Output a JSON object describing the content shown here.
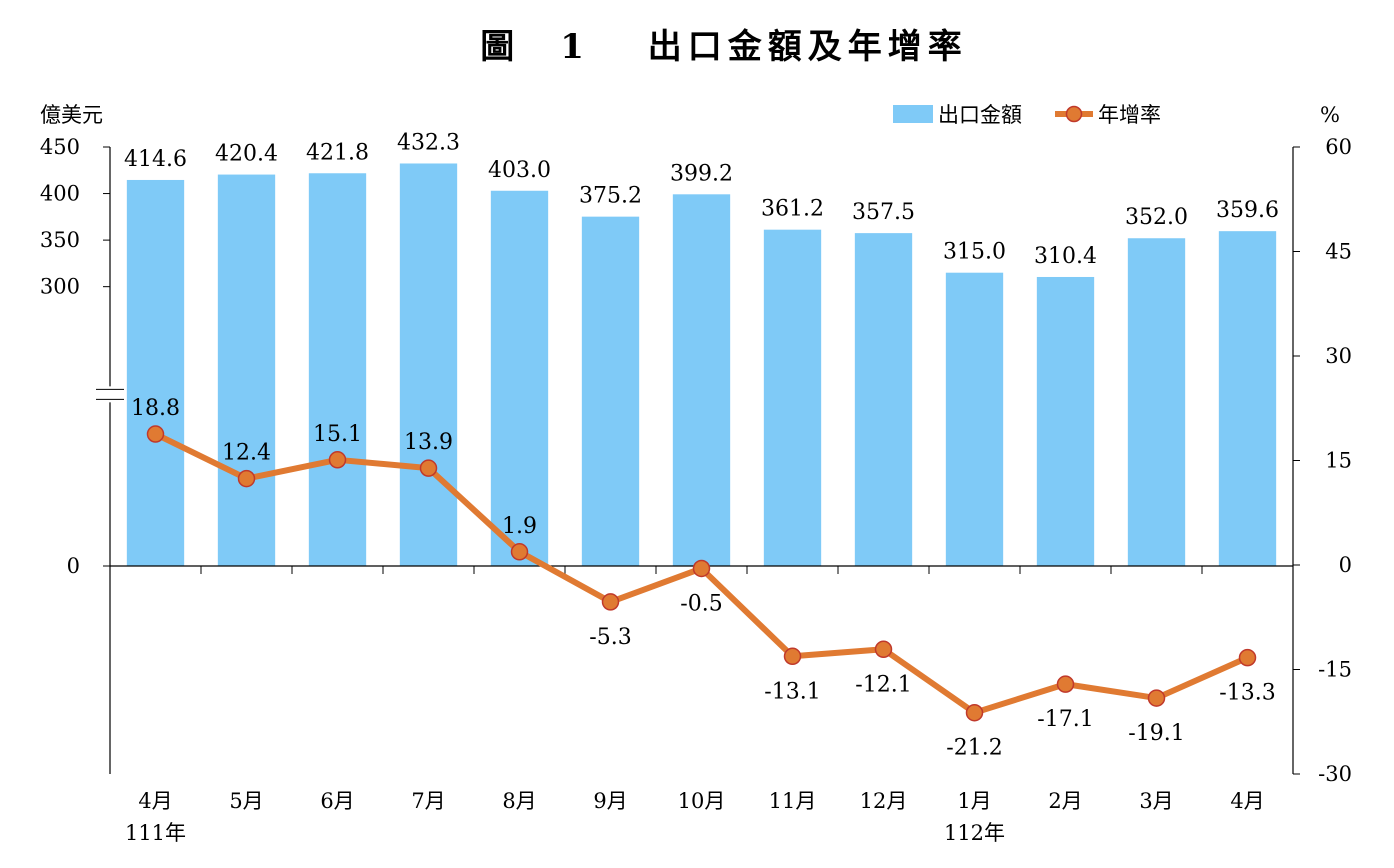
{
  "chart_data": {
    "type": "bar+line",
    "title": "圖　1　 出口金額及年增率",
    "y_left_unit": "億美元",
    "y_right_unit": "%",
    "y_left_ticks": [
      "0",
      "300",
      "350",
      "400",
      "450"
    ],
    "y_left_range": [
      0,
      450
    ],
    "y_left_axis_break": true,
    "y_right_ticks": [
      "60",
      "45",
      "30",
      "15",
      "0",
      "-15",
      "-30"
    ],
    "y_right_range": [
      -30,
      60
    ],
    "categories": [
      "4月",
      "5月",
      "6月",
      "7月",
      "8月",
      "9月",
      "10月",
      "11月",
      "12月",
      "1月",
      "2月",
      "3月",
      "4月"
    ],
    "year_labels": [
      {
        "index": 0,
        "label": "111年"
      },
      {
        "index": 9,
        "label": "112年"
      }
    ],
    "legend": {
      "position": "top-right",
      "bar_label": "出口金額",
      "line_label": "年增率"
    },
    "colors": {
      "bar": "#7fcaf7",
      "line": "#e07a32",
      "marker": "#e07a32",
      "marker_edge": "#c0392b"
    },
    "series": [
      {
        "name": "出口金額",
        "type": "bar",
        "axis": "left",
        "values": [
          414.6,
          420.4,
          421.8,
          432.3,
          403.0,
          375.2,
          399.2,
          361.2,
          357.5,
          315.0,
          310.4,
          352.0,
          359.6
        ],
        "labels": [
          "414.6",
          "420.4",
          "421.8",
          "432.3",
          "403.0",
          "375.2",
          "399.2",
          "361.2",
          "357.5",
          "315.0",
          "310.4",
          "352.0",
          "359.6"
        ]
      },
      {
        "name": "年增率",
        "type": "line",
        "axis": "right",
        "values": [
          18.8,
          12.4,
          15.1,
          13.9,
          1.9,
          -5.3,
          -0.5,
          -13.1,
          -12.1,
          -21.2,
          -17.1,
          -19.1,
          -13.3
        ],
        "labels": [
          "18.8",
          "12.4",
          "15.1",
          "13.9",
          "1.9",
          "-5.3",
          "-0.5",
          "-13.1",
          "-12.1",
          "-21.2",
          "-17.1",
          "-19.1",
          "-13.3"
        ]
      }
    ]
  }
}
